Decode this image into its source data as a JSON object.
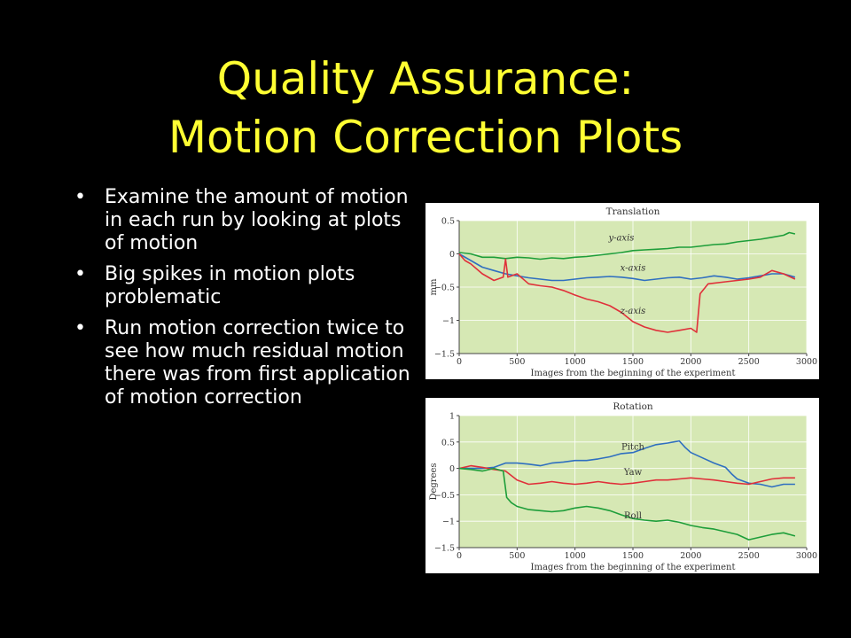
{
  "slide": {
    "title_line1": "Quality Assurance:",
    "title_line2": "Motion Correction Plots",
    "bullets": [
      "Examine the amount of motion in each run by looking at plots of motion",
      "Big spikes in motion plots problematic",
      "Run motion correction twice to see how much residual motion there was from first application of motion correction"
    ],
    "bullet_glyph": "•",
    "colors": {
      "background": "#000000",
      "title": "#FFFF33",
      "text": "#FFFFFF"
    }
  },
  "chart_data": [
    {
      "type": "line",
      "title": "Translation",
      "xlabel": "Images from the beginning of the experiment",
      "ylabel": "mm",
      "xlim": [
        0,
        3000
      ],
      "ylim": [
        -1.5,
        0.5
      ],
      "xticks": [
        0,
        500,
        1000,
        1500,
        2000,
        2500,
        3000
      ],
      "xtick_labels": [
        "0",
        "500",
        "1000",
        "1500",
        "2000",
        "2500",
        "3000"
      ],
      "yticks": [
        0.5,
        0,
        -0.5,
        -1,
        -1.5
      ],
      "ytick_labels": [
        "0.5",
        "0",
        "−0.5",
        "−1",
        "−1.5"
      ],
      "grid": true,
      "plot_background": "#D6E8B4",
      "legend": "inline labels",
      "series": [
        {
          "name": "y-axis",
          "color": "#1E9E3A",
          "label_at": [
            1400,
            0.2
          ],
          "points": [
            [
              0,
              0.02
            ],
            [
              100,
              0
            ],
            [
              200,
              -0.05
            ],
            [
              300,
              -0.05
            ],
            [
              400,
              -0.07
            ],
            [
              500,
              -0.05
            ],
            [
              600,
              -0.06
            ],
            [
              700,
              -0.08
            ],
            [
              800,
              -0.06
            ],
            [
              900,
              -0.07
            ],
            [
              1000,
              -0.05
            ],
            [
              1100,
              -0.04
            ],
            [
              1200,
              -0.02
            ],
            [
              1300,
              0
            ],
            [
              1400,
              0.02
            ],
            [
              1500,
              0.05
            ],
            [
              1600,
              0.06
            ],
            [
              1700,
              0.07
            ],
            [
              1800,
              0.08
            ],
            [
              1900,
              0.1
            ],
            [
              2000,
              0.1
            ],
            [
              2100,
              0.12
            ],
            [
              2200,
              0.14
            ],
            [
              2300,
              0.15
            ],
            [
              2400,
              0.18
            ],
            [
              2500,
              0.2
            ],
            [
              2600,
              0.22
            ],
            [
              2700,
              0.25
            ],
            [
              2800,
              0.28
            ],
            [
              2850,
              0.32
            ],
            [
              2900,
              0.3
            ]
          ]
        },
        {
          "name": "x-axis",
          "color": "#2F6FC0",
          "label_at": [
            1500,
            -0.25
          ],
          "points": [
            [
              0,
              0
            ],
            [
              100,
              -0.1
            ],
            [
              200,
              -0.2
            ],
            [
              300,
              -0.25
            ],
            [
              400,
              -0.3
            ],
            [
              500,
              -0.33
            ],
            [
              600,
              -0.36
            ],
            [
              700,
              -0.38
            ],
            [
              800,
              -0.4
            ],
            [
              900,
              -0.4
            ],
            [
              1000,
              -0.38
            ],
            [
              1100,
              -0.36
            ],
            [
              1200,
              -0.35
            ],
            [
              1300,
              -0.34
            ],
            [
              1400,
              -0.35
            ],
            [
              1500,
              -0.37
            ],
            [
              1600,
              -0.4
            ],
            [
              1700,
              -0.38
            ],
            [
              1800,
              -0.36
            ],
            [
              1900,
              -0.35
            ],
            [
              2000,
              -0.38
            ],
            [
              2100,
              -0.36
            ],
            [
              2200,
              -0.33
            ],
            [
              2300,
              -0.35
            ],
            [
              2400,
              -0.38
            ],
            [
              2500,
              -0.36
            ],
            [
              2600,
              -0.33
            ],
            [
              2700,
              -0.3
            ],
            [
              2800,
              -0.3
            ],
            [
              2900,
              -0.35
            ]
          ]
        },
        {
          "name": "z-axis",
          "color": "#E0303A",
          "label_at": [
            1500,
            -0.9
          ],
          "points": [
            [
              0,
              0
            ],
            [
              50,
              -0.1
            ],
            [
              100,
              -0.15
            ],
            [
              200,
              -0.3
            ],
            [
              300,
              -0.4
            ],
            [
              380,
              -0.35
            ],
            [
              400,
              -0.08
            ],
            [
              420,
              -0.35
            ],
            [
              500,
              -0.3
            ],
            [
              600,
              -0.45
            ],
            [
              700,
              -0.48
            ],
            [
              800,
              -0.5
            ],
            [
              900,
              -0.55
            ],
            [
              1000,
              -0.62
            ],
            [
              1100,
              -0.68
            ],
            [
              1200,
              -0.72
            ],
            [
              1300,
              -0.78
            ],
            [
              1400,
              -0.88
            ],
            [
              1500,
              -1.02
            ],
            [
              1600,
              -1.1
            ],
            [
              1700,
              -1.15
            ],
            [
              1800,
              -1.18
            ],
            [
              1900,
              -1.15
            ],
            [
              2000,
              -1.12
            ],
            [
              2050,
              -1.18
            ],
            [
              2080,
              -0.6
            ],
            [
              2150,
              -0.45
            ],
            [
              2300,
              -0.42
            ],
            [
              2500,
              -0.38
            ],
            [
              2600,
              -0.35
            ],
            [
              2700,
              -0.25
            ],
            [
              2800,
              -0.3
            ],
            [
              2900,
              -0.38
            ]
          ]
        }
      ]
    },
    {
      "type": "line",
      "title": "Rotation",
      "xlabel": "Images from the beginning of the experiment",
      "ylabel": "Degrees",
      "xlim": [
        0,
        3000
      ],
      "ylim": [
        -1.5,
        1
      ],
      "xticks": [
        0,
        500,
        1000,
        1500,
        2000,
        2500,
        3000
      ],
      "xtick_labels": [
        "0",
        "500",
        "1000",
        "1500",
        "2000",
        "2500",
        "3000"
      ],
      "yticks": [
        1,
        0.5,
        0,
        -0.5,
        -1,
        -1.5
      ],
      "ytick_labels": [
        "1",
        "0.5",
        "0",
        "−0.5",
        "−1",
        "−1.5"
      ],
      "grid": true,
      "plot_background": "#D6E8B4",
      "legend": "inline labels",
      "series": [
        {
          "name": "Pitch",
          "color": "#2F6FC0",
          "label_at": [
            1500,
            0.35
          ],
          "points": [
            [
              0,
              0
            ],
            [
              100,
              0
            ],
            [
              200,
              0
            ],
            [
              300,
              0.02
            ],
            [
              400,
              0.1
            ],
            [
              500,
              0.1
            ],
            [
              600,
              0.08
            ],
            [
              700,
              0.05
            ],
            [
              800,
              0.1
            ],
            [
              900,
              0.12
            ],
            [
              1000,
              0.15
            ],
            [
              1100,
              0.15
            ],
            [
              1200,
              0.18
            ],
            [
              1300,
              0.22
            ],
            [
              1400,
              0.28
            ],
            [
              1500,
              0.3
            ],
            [
              1600,
              0.38
            ],
            [
              1700,
              0.45
            ],
            [
              1800,
              0.48
            ],
            [
              1900,
              0.52
            ],
            [
              1950,
              0.4
            ],
            [
              2000,
              0.3
            ],
            [
              2100,
              0.2
            ],
            [
              2200,
              0.1
            ],
            [
              2300,
              0.02
            ],
            [
              2350,
              -0.1
            ],
            [
              2400,
              -0.2
            ],
            [
              2500,
              -0.28
            ],
            [
              2600,
              -0.3
            ],
            [
              2700,
              -0.35
            ],
            [
              2800,
              -0.3
            ],
            [
              2900,
              -0.3
            ]
          ]
        },
        {
          "name": "Yaw",
          "color": "#E0303A",
          "label_at": [
            1500,
            -0.12
          ],
          "points": [
            [
              0,
              0
            ],
            [
              100,
              0.05
            ],
            [
              200,
              0.02
            ],
            [
              300,
              -0.02
            ],
            [
              400,
              -0.05
            ],
            [
              500,
              -0.22
            ],
            [
              600,
              -0.3
            ],
            [
              700,
              -0.28
            ],
            [
              800,
              -0.25
            ],
            [
              900,
              -0.28
            ],
            [
              1000,
              -0.3
            ],
            [
              1100,
              -0.28
            ],
            [
              1200,
              -0.25
            ],
            [
              1300,
              -0.28
            ],
            [
              1400,
              -0.3
            ],
            [
              1500,
              -0.28
            ],
            [
              1600,
              -0.25
            ],
            [
              1700,
              -0.22
            ],
            [
              1800,
              -0.22
            ],
            [
              1900,
              -0.2
            ],
            [
              2000,
              -0.18
            ],
            [
              2100,
              -0.2
            ],
            [
              2200,
              -0.22
            ],
            [
              2300,
              -0.25
            ],
            [
              2400,
              -0.28
            ],
            [
              2500,
              -0.3
            ],
            [
              2600,
              -0.25
            ],
            [
              2700,
              -0.2
            ],
            [
              2800,
              -0.18
            ],
            [
              2900,
              -0.18
            ]
          ]
        },
        {
          "name": "Roll",
          "color": "#1E9E3A",
          "label_at": [
            1500,
            -0.95
          ],
          "points": [
            [
              0,
              0
            ],
            [
              100,
              -0.02
            ],
            [
              200,
              -0.05
            ],
            [
              300,
              0
            ],
            [
              380,
              -0.05
            ],
            [
              410,
              -0.55
            ],
            [
              450,
              -0.65
            ],
            [
              500,
              -0.72
            ],
            [
              600,
              -0.78
            ],
            [
              700,
              -0.8
            ],
            [
              800,
              -0.82
            ],
            [
              900,
              -0.8
            ],
            [
              1000,
              -0.75
            ],
            [
              1100,
              -0.72
            ],
            [
              1200,
              -0.75
            ],
            [
              1300,
              -0.8
            ],
            [
              1400,
              -0.88
            ],
            [
              1500,
              -0.95
            ],
            [
              1600,
              -0.98
            ],
            [
              1700,
              -1
            ],
            [
              1800,
              -0.98
            ],
            [
              1900,
              -1.02
            ],
            [
              2000,
              -1.08
            ],
            [
              2100,
              -1.12
            ],
            [
              2200,
              -1.15
            ],
            [
              2300,
              -1.2
            ],
            [
              2400,
              -1.25
            ],
            [
              2500,
              -1.35
            ],
            [
              2600,
              -1.3
            ],
            [
              2700,
              -1.25
            ],
            [
              2800,
              -1.22
            ],
            [
              2900,
              -1.28
            ]
          ]
        }
      ]
    }
  ]
}
